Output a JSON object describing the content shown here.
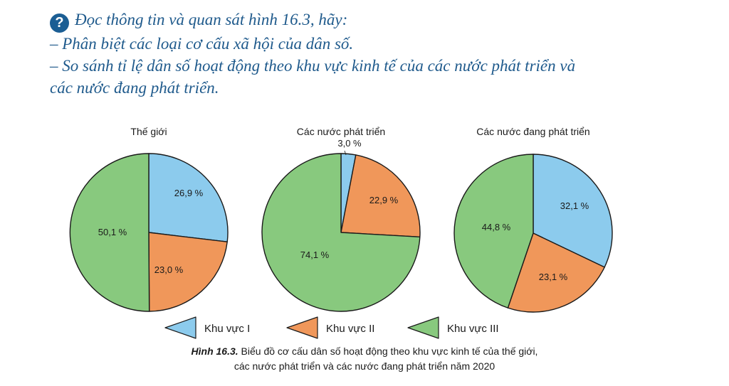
{
  "question": {
    "line1": "Đọc thông tin và quan sát hình 16.3, hãy:",
    "line2": "– Phân biệt các loại cơ cấu xã hội của dân số.",
    "line3": "– So sánh tỉ lệ dân số hoạt động theo khu vực kinh tế của các nước phát triển và",
    "line4": "các nước đang phát triển."
  },
  "caption": {
    "label": "Hình 16.3.",
    "line1": " Biểu đồ cơ cấu dân số hoạt động theo khu vực kinh tế của thế giới,",
    "line2": "các nước phát triển và các nước đang phát triển năm 2020"
  },
  "colors": {
    "khu_vuc_1": "#8ccbed",
    "khu_vuc_2": "#f0975a",
    "khu_vuc_3": "#88c97e",
    "text": "#1a1a1a",
    "question": "#1f5a8c"
  },
  "chart_data": [
    {
      "type": "pie",
      "title": "Thế giới",
      "categories": [
        "Khu vực I",
        "Khu vực II",
        "Khu vực III"
      ],
      "values": [
        26.9,
        23.0,
        50.1
      ],
      "labels": [
        "26,9 %",
        "23,0 %",
        "50,1 %"
      ]
    },
    {
      "type": "pie",
      "title": "Các nước phát triển",
      "categories": [
        "Khu vực I",
        "Khu vực II",
        "Khu vực III"
      ],
      "values": [
        3.0,
        22.9,
        74.1
      ],
      "labels": [
        "3,0 %",
        "22,9 %",
        "74,1 %"
      ]
    },
    {
      "type": "pie",
      "title": "Các nước đang phát triển",
      "categories": [
        "Khu vực I",
        "Khu vực II",
        "Khu vực III"
      ],
      "values": [
        32.1,
        23.1,
        44.8
      ],
      "labels": [
        "32,1 %",
        "23,1 %",
        "44,8 %"
      ]
    }
  ],
  "legend": [
    "Khu vực I",
    "Khu vực II",
    "Khu vực III"
  ]
}
